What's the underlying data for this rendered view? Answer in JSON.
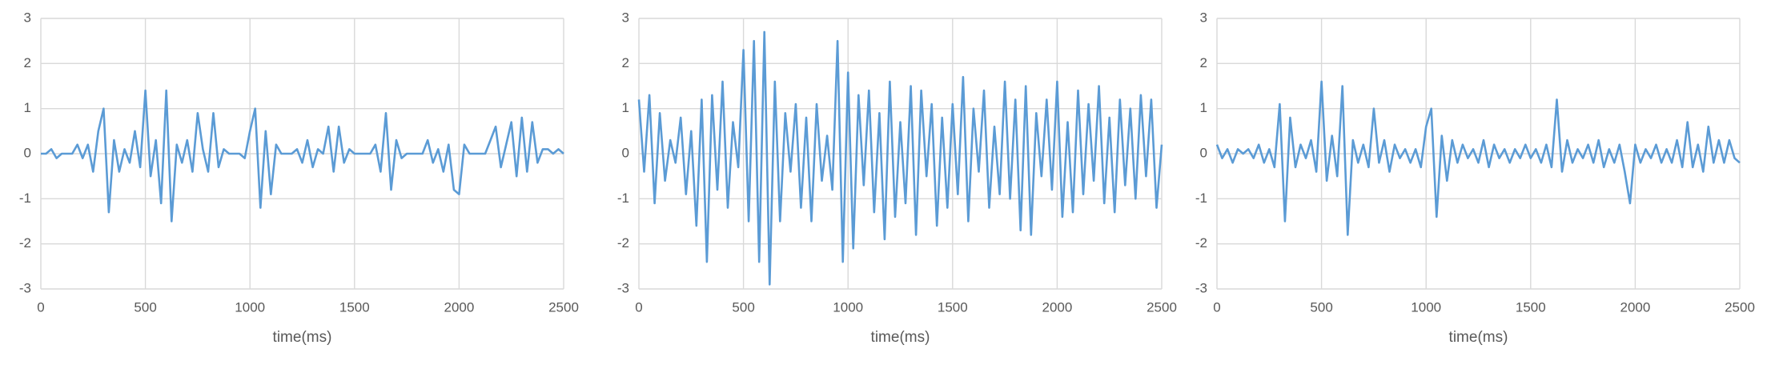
{
  "chart_data": [
    {
      "type": "line",
      "x_label": "time(ms)",
      "color": "#5b9bd5",
      "grid": true,
      "xlim": [
        0,
        2500
      ],
      "ylim": [
        -3,
        3
      ],
      "xticks": [
        0,
        500,
        1000,
        1500,
        2000,
        2500
      ],
      "yticks": [
        -3,
        -2,
        -1,
        0,
        1,
        2,
        3
      ],
      "x": [
        0,
        25,
        50,
        75,
        100,
        125,
        150,
        175,
        200,
        225,
        250,
        275,
        300,
        325,
        350,
        375,
        400,
        425,
        450,
        475,
        500,
        525,
        550,
        575,
        600,
        625,
        650,
        675,
        700,
        725,
        750,
        775,
        800,
        825,
        850,
        875,
        900,
        925,
        950,
        975,
        1000,
        1025,
        1050,
        1075,
        1100,
        1125,
        1150,
        1175,
        1200,
        1225,
        1250,
        1275,
        1300,
        1325,
        1350,
        1375,
        1400,
        1425,
        1450,
        1475,
        1500,
        1525,
        1550,
        1575,
        1600,
        1625,
        1650,
        1675,
        1700,
        1725,
        1750,
        1775,
        1800,
        1825,
        1850,
        1875,
        1900,
        1925,
        1950,
        1975,
        2000,
        2025,
        2050,
        2075,
        2100,
        2125,
        2150,
        2175,
        2200,
        2225,
        2250,
        2275,
        2300,
        2325,
        2350,
        2375,
        2400,
        2425,
        2450,
        2475,
        2500
      ],
      "values": [
        0,
        0,
        0.1,
        -0.1,
        0,
        0,
        0,
        0.2,
        -0.1,
        0.2,
        -0.4,
        0.5,
        1.0,
        -1.3,
        0.3,
        -0.4,
        0.1,
        -0.2,
        0.5,
        -0.3,
        1.4,
        -0.5,
        0.3,
        -1.1,
        1.4,
        -1.5,
        0.2,
        -0.2,
        0.3,
        -0.4,
        0.9,
        0.1,
        -0.4,
        0.9,
        -0.3,
        0.1,
        0,
        0,
        0,
        -0.1,
        0.5,
        1.0,
        -1.2,
        0.5,
        -0.9,
        0.2,
        0,
        0,
        0,
        0.1,
        -0.2,
        0.3,
        -0.3,
        0.1,
        0,
        0.6,
        -0.4,
        0.6,
        -0.2,
        0.1,
        0,
        0,
        0,
        0,
        0.2,
        -0.4,
        0.9,
        -0.8,
        0.3,
        -0.1,
        0,
        0,
        0,
        0,
        0.3,
        -0.2,
        0.1,
        -0.4,
        0.2,
        -0.8,
        -0.9,
        0.2,
        0,
        0,
        0,
        0,
        0.3,
        0.6,
        -0.3,
        0.2,
        0.7,
        -0.5,
        0.8,
        -0.4,
        0.7,
        -0.2,
        0.1,
        0.1,
        0,
        0.1,
        0
      ]
    },
    {
      "type": "line",
      "x_label": "time(ms)",
      "color": "#5b9bd5",
      "grid": true,
      "xlim": [
        0,
        2500
      ],
      "ylim": [
        -3,
        3
      ],
      "xticks": [
        0,
        500,
        1000,
        1500,
        2000,
        2500
      ],
      "yticks": [
        -3,
        -2,
        -1,
        0,
        1,
        2,
        3
      ],
      "x": [
        0,
        25,
        50,
        75,
        100,
        125,
        150,
        175,
        200,
        225,
        250,
        275,
        300,
        325,
        350,
        375,
        400,
        425,
        450,
        475,
        500,
        525,
        550,
        575,
        600,
        625,
        650,
        675,
        700,
        725,
        750,
        775,
        800,
        825,
        850,
        875,
        900,
        925,
        950,
        975,
        1000,
        1025,
        1050,
        1075,
        1100,
        1125,
        1150,
        1175,
        1200,
        1225,
        1250,
        1275,
        1300,
        1325,
        1350,
        1375,
        1400,
        1425,
        1450,
        1475,
        1500,
        1525,
        1550,
        1575,
        1600,
        1625,
        1650,
        1675,
        1700,
        1725,
        1750,
        1775,
        1800,
        1825,
        1850,
        1875,
        1900,
        1925,
        1950,
        1975,
        2000,
        2025,
        2050,
        2075,
        2100,
        2125,
        2150,
        2175,
        2200,
        2225,
        2250,
        2275,
        2300,
        2325,
        2350,
        2375,
        2400,
        2425,
        2450,
        2475,
        2500
      ],
      "values": [
        1.2,
        -0.4,
        1.3,
        -1.1,
        0.9,
        -0.6,
        0.3,
        -0.2,
        0.8,
        -0.9,
        0.5,
        -1.6,
        1.2,
        -2.4,
        1.3,
        -0.8,
        1.6,
        -1.2,
        0.7,
        -0.3,
        2.3,
        -1.5,
        2.5,
        -2.4,
        2.7,
        -2.9,
        1.6,
        -1.5,
        0.9,
        -0.4,
        1.1,
        -1.2,
        0.8,
        -1.5,
        1.1,
        -0.6,
        0.4,
        -0.8,
        2.5,
        -2.4,
        1.8,
        -2.1,
        1.3,
        -0.7,
        1.4,
        -1.3,
        0.9,
        -1.9,
        1.6,
        -1.4,
        0.7,
        -1.1,
        1.5,
        -1.8,
        1.4,
        -0.5,
        1.1,
        -1.6,
        0.8,
        -1.2,
        1.1,
        -0.9,
        1.7,
        -1.5,
        1.0,
        -0.4,
        1.4,
        -1.2,
        0.6,
        -0.9,
        1.6,
        -1.0,
        1.2,
        -1.7,
        1.5,
        -1.8,
        0.9,
        -0.5,
        1.2,
        -0.8,
        1.6,
        -1.4,
        0.7,
        -1.3,
        1.4,
        -0.9,
        1.1,
        -0.6,
        1.5,
        -1.1,
        0.8,
        -1.3,
        1.2,
        -0.7,
        1.0,
        -1.0,
        1.3,
        -0.5,
        1.2,
        -1.2,
        0.2
      ]
    },
    {
      "type": "line",
      "x_label": "time(ms)",
      "color": "#5b9bd5",
      "grid": true,
      "xlim": [
        0,
        2500
      ],
      "ylim": [
        -3,
        3
      ],
      "xticks": [
        0,
        500,
        1000,
        1500,
        2000,
        2500
      ],
      "yticks": [
        -3,
        -2,
        -1,
        0,
        1,
        2,
        3
      ],
      "x": [
        0,
        25,
        50,
        75,
        100,
        125,
        150,
        175,
        200,
        225,
        250,
        275,
        300,
        325,
        350,
        375,
        400,
        425,
        450,
        475,
        500,
        525,
        550,
        575,
        600,
        625,
        650,
        675,
        700,
        725,
        750,
        775,
        800,
        825,
        850,
        875,
        900,
        925,
        950,
        975,
        1000,
        1025,
        1050,
        1075,
        1100,
        1125,
        1150,
        1175,
        1200,
        1225,
        1250,
        1275,
        1300,
        1325,
        1350,
        1375,
        1400,
        1425,
        1450,
        1475,
        1500,
        1525,
        1550,
        1575,
        1600,
        1625,
        1650,
        1675,
        1700,
        1725,
        1750,
        1775,
        1800,
        1825,
        1850,
        1875,
        1900,
        1925,
        1950,
        1975,
        2000,
        2025,
        2050,
        2075,
        2100,
        2125,
        2150,
        2175,
        2200,
        2225,
        2250,
        2275,
        2300,
        2325,
        2350,
        2375,
        2400,
        2425,
        2450,
        2475,
        2500
      ],
      "values": [
        0.2,
        -0.1,
        0.1,
        -0.2,
        0.1,
        0,
        0.1,
        -0.1,
        0.2,
        -0.2,
        0.1,
        -0.3,
        1.1,
        -1.5,
        0.8,
        -0.3,
        0.2,
        -0.1,
        0.3,
        -0.4,
        1.6,
        -0.6,
        0.4,
        -0.5,
        1.5,
        -1.8,
        0.3,
        -0.2,
        0.2,
        -0.3,
        1.0,
        -0.2,
        0.3,
        -0.4,
        0.2,
        -0.1,
        0.1,
        -0.2,
        0.1,
        -0.3,
        0.6,
        1.0,
        -1.4,
        0.4,
        -0.6,
        0.3,
        -0.2,
        0.2,
        -0.1,
        0.1,
        -0.2,
        0.3,
        -0.3,
        0.2,
        -0.1,
        0.1,
        -0.2,
        0.1,
        -0.1,
        0.2,
        -0.1,
        0.1,
        -0.2,
        0.2,
        -0.3,
        1.2,
        -0.4,
        0.3,
        -0.2,
        0.1,
        -0.1,
        0.2,
        -0.2,
        0.3,
        -0.3,
        0.1,
        -0.2,
        0.2,
        -0.4,
        -1.1,
        0.2,
        -0.2,
        0.1,
        -0.1,
        0.2,
        -0.2,
        0.1,
        -0.2,
        0.3,
        -0.3,
        0.7,
        -0.3,
        0.2,
        -0.4,
        0.6,
        -0.2,
        0.3,
        -0.2,
        0.3,
        -0.1,
        -0.2
      ]
    }
  ]
}
